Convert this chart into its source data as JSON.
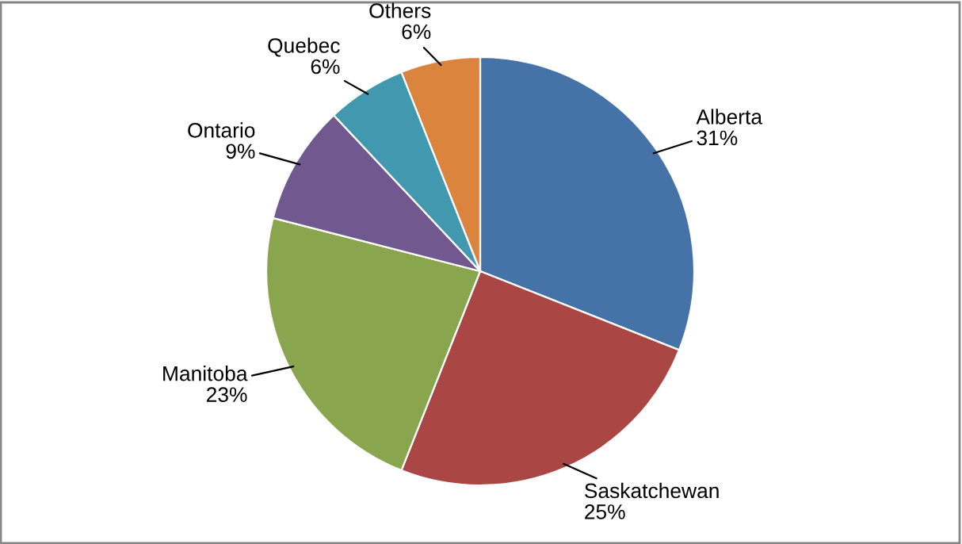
{
  "chart_data": {
    "type": "pie",
    "categories": [
      "Alberta",
      "Saskatchewan",
      "Manitoba",
      "Ontario",
      "Quebec",
      "Others"
    ],
    "values": [
      31,
      25,
      23,
      9,
      6,
      6
    ],
    "value_labels": [
      "31%",
      "25%",
      "23%",
      "9%",
      "6%",
      "6%"
    ],
    "colors": [
      "#4572a7",
      "#aa4643",
      "#89a54e",
      "#71588f",
      "#4198af",
      "#db843d"
    ],
    "legend": false
  }
}
